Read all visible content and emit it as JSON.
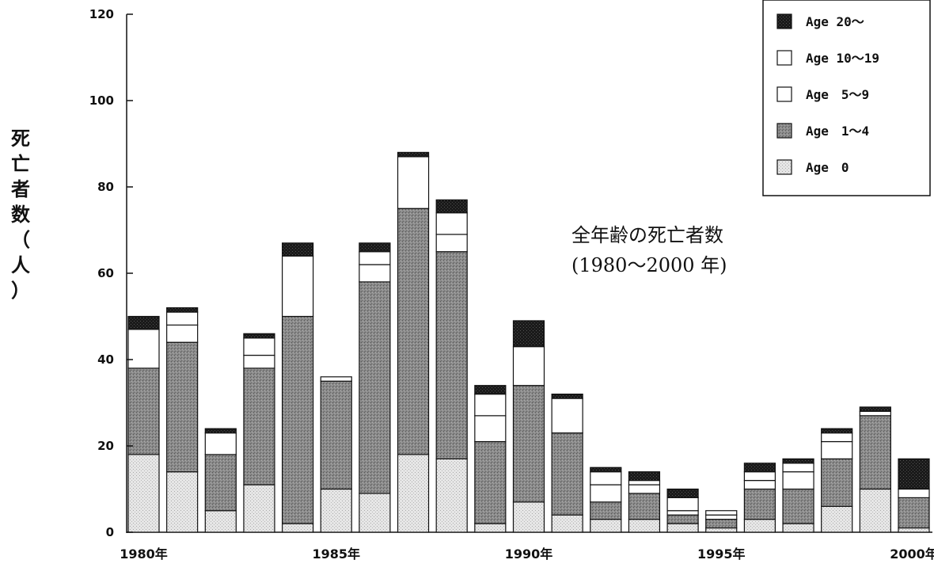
{
  "chart_data": {
    "type": "bar",
    "stacked": true,
    "title": "",
    "ylabel": "死亡者数（人）",
    "xlabel": "",
    "ylim": [
      0,
      120
    ],
    "yticks": [
      0,
      20,
      40,
      60,
      80,
      100,
      120
    ],
    "x_tick_labels": [
      {
        "index": 0,
        "label": "1980年"
      },
      {
        "index": 5,
        "label": "1985年"
      },
      {
        "index": 10,
        "label": "1990年"
      },
      {
        "index": 15,
        "label": "1995年"
      },
      {
        "index": 20,
        "label": "2000年"
      }
    ],
    "categories": [
      "1980",
      "1981",
      "1982",
      "1983",
      "1984",
      "1985",
      "1986",
      "1987",
      "1988",
      "1989",
      "1990",
      "1991",
      "1992",
      "1993",
      "1994",
      "1995",
      "1996",
      "1997",
      "1998",
      "1999",
      "2000"
    ],
    "series": [
      {
        "name": "Age　0",
        "values": [
          18,
          14,
          5,
          11,
          2,
          10,
          9,
          18,
          17,
          2,
          7,
          4,
          3,
          3,
          2,
          1,
          3,
          2,
          6,
          10,
          1
        ],
        "color": "#d9d9d9"
      },
      {
        "name": "Age　1～4",
        "values": [
          20,
          30,
          13,
          27,
          48,
          25,
          49,
          57,
          48,
          19,
          27,
          19,
          4,
          6,
          2,
          2,
          7,
          8,
          11,
          17,
          7
        ],
        "color": "#8f8f8f"
      },
      {
        "name": "Age　5～9",
        "values": [
          0,
          4,
          0,
          3,
          0,
          1,
          4,
          0,
          4,
          6,
          0,
          0,
          4,
          2,
          1,
          1,
          2,
          4,
          4,
          0,
          2
        ],
        "color": "#ffffff"
      },
      {
        "name": "Age 10～19",
        "values": [
          9,
          3,
          5,
          4,
          14,
          0,
          3,
          12,
          5,
          5,
          9,
          8,
          3,
          1,
          3,
          1,
          2,
          2,
          2,
          1,
          0
        ],
        "color": "#ffffff"
      },
      {
        "name": "Age 20～",
        "values": [
          3,
          1,
          1,
          1,
          3,
          0,
          2,
          1,
          3,
          2,
          6,
          1,
          1,
          2,
          2,
          0,
          2,
          1,
          1,
          1,
          7
        ],
        "color": "#1a1a1a"
      }
    ],
    "legend": {
      "position": "top-right",
      "entries": [
        "Age 20～",
        "Age 10～19",
        "Age　5～9",
        "Age　1～4",
        "Age　0"
      ]
    },
    "annotation": [
      "全年齢の死亡者数",
      "(1980～2000 年)"
    ],
    "grid": false
  }
}
